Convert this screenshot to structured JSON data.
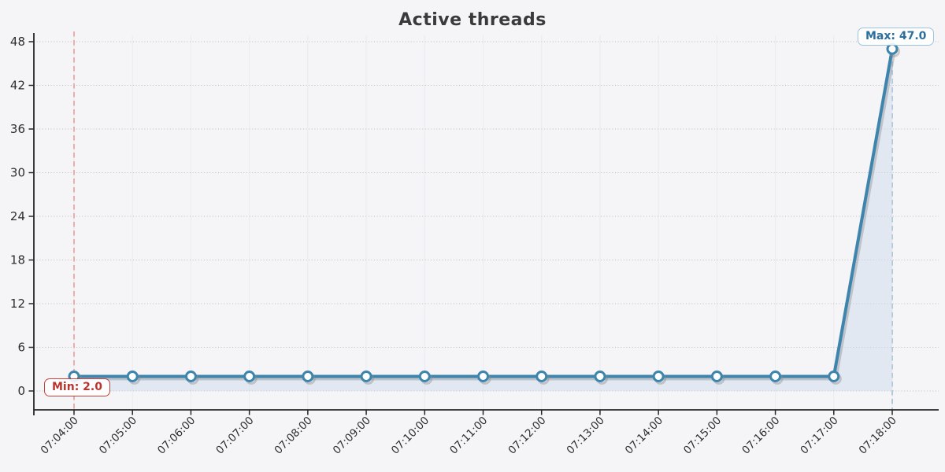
{
  "chart_data": {
    "type": "line",
    "title": "Active threads",
    "x": [
      "07:04:00",
      "07:05:00",
      "07:06:00",
      "07:07:00",
      "07:08:00",
      "07:09:00",
      "07:10:00",
      "07:11:00",
      "07:12:00",
      "07:13:00",
      "07:14:00",
      "07:15:00",
      "07:16:00",
      "07:17:00",
      "07:18:00"
    ],
    "series": [
      {
        "name": "Active threads",
        "values": [
          2,
          2,
          2,
          2,
          2,
          2,
          2,
          2,
          2,
          2,
          2,
          2,
          2,
          2,
          47
        ]
      }
    ],
    "yticks": [
      0,
      6,
      12,
      18,
      24,
      30,
      36,
      42,
      48
    ],
    "ylim": [
      0,
      49
    ],
    "grid": true,
    "legend_position": "none",
    "annotations": {
      "min": {
        "label": "Min: 2.0",
        "value": 2.0,
        "x": "07:04:00",
        "x_index": 0
      },
      "max": {
        "label": "Max: 47.0",
        "value": 47.0,
        "x": "07:18:00",
        "x_index": 14
      }
    },
    "colors": {
      "line": "#3d85ad",
      "marker_fill": "#ffffff",
      "area": "#c9daea",
      "shadow": "#8c8c8c",
      "grid": "#bdbdbd",
      "grid_vertical": "#eaeaf0",
      "axis": "#262626",
      "tick_label": "#2e2e2e",
      "min_box": "#c5403a",
      "min_dash": "#eba7a1",
      "max_box": "#9dc3da",
      "max_text": "#2c6f9e",
      "max_dash": "#a9c4d6",
      "background": "#f5f4f7"
    }
  }
}
